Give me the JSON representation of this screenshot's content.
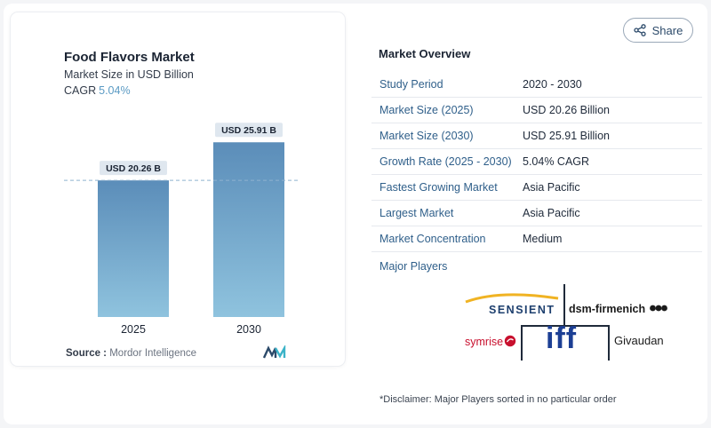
{
  "chart_card": {
    "title": "Food Flavors Market",
    "subtitle": "Market Size in USD Billion",
    "cagr_label": "CAGR",
    "cagr_value": "5.04%",
    "source_label": "Source :",
    "source_value": "Mordor Intelligence",
    "logo_icon": "mordor-intelligence-logo"
  },
  "chart_data": {
    "type": "bar",
    "categories": [
      "2025",
      "2030"
    ],
    "values": [
      20.26,
      25.91
    ],
    "data_labels": [
      "USD 20.26 B",
      "USD 25.91 B"
    ],
    "title": "Food Flavors Market",
    "ylim": [
      0,
      32
    ],
    "reference_line": 20.26,
    "colors": {
      "bar_top": "#5b8db9",
      "bar_bottom": "#8fc3de",
      "label_bg": "#dfe7ef",
      "reference_line": "#8fb3cf"
    }
  },
  "share": {
    "label": "Share",
    "icon": "share-icon"
  },
  "overview": {
    "title": "Market Overview",
    "rows": [
      {
        "label": "Study Period",
        "value": "2020 - 2030"
      },
      {
        "label": "Market Size (2025)",
        "value": "USD 20.26 Billion"
      },
      {
        "label": "Market Size (2030)",
        "value": "USD 25.91 Billion"
      },
      {
        "label": "Growth Rate (2025 - 2030)",
        "value": "5.04% CAGR"
      },
      {
        "label": "Fastest Growing Market",
        "value": "Asia Pacific"
      },
      {
        "label": "Largest Market",
        "value": "Asia Pacific"
      },
      {
        "label": "Market Concentration",
        "value": "Medium"
      }
    ],
    "major_players_label": "Major Players"
  },
  "players": {
    "sensient": "SENSIENT",
    "dsm": "dsm-firmenich",
    "symrise": "symrise",
    "iff": "iff",
    "givaudan": "Givaudan"
  },
  "disclaimer": "*Disclaimer: Major Players sorted in no particular order"
}
